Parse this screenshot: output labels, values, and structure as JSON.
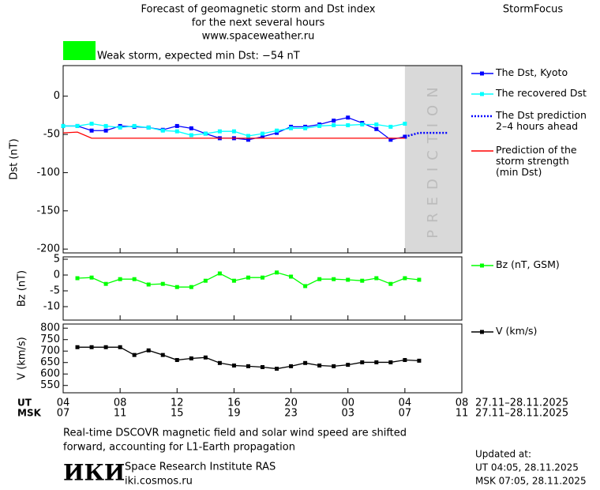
{
  "header": {
    "title_lines": [
      "Forecast of geomagnetic storm and Dst index",
      "for the next several hours",
      "www.spaceweather.ru"
    ],
    "brand": "StormFocus",
    "storm_color": "#00ff00",
    "storm_text": "Weak storm, expected min Dst: −54 nT"
  },
  "chart_data": [
    {
      "type": "line",
      "y_label": "Dst (nT)",
      "ylim": [
        -205,
        40
      ],
      "yticks": [
        0,
        -50,
        -100,
        -150,
        -200
      ],
      "prediction_window": [
        24,
        28
      ],
      "prediction_label": "PREDICTION",
      "prediction_color": "#d9d9d9",
      "series": [
        {
          "name": "The Dst, Kyoto",
          "color": "#0000ff",
          "marker": "square",
          "line_style": "solid",
          "x": [
            0,
            1,
            2,
            3,
            4,
            5,
            6,
            7,
            8,
            9,
            10,
            11,
            12,
            13,
            14,
            15,
            16,
            17,
            18,
            19,
            20,
            21,
            22,
            23,
            24
          ],
          "values": [
            -39,
            -39,
            -45,
            -45,
            -39,
            -40,
            -41,
            -44,
            -39,
            -42,
            -49,
            -55,
            -55,
            -57,
            -53,
            -48,
            -40,
            -40,
            -37,
            -32,
            -28,
            -35,
            -43,
            -57,
            -53
          ]
        },
        {
          "name": "The recovered Dst",
          "color": "#00ffff",
          "marker": "square",
          "line_style": "solid",
          "x": [
            0,
            1,
            2,
            3,
            4,
            5,
            6,
            7,
            8,
            9,
            10,
            11,
            12,
            13,
            14,
            15,
            16,
            17,
            18,
            19,
            20,
            21,
            22,
            23,
            24
          ],
          "values": [
            -39,
            -39,
            -36,
            -39,
            -41,
            -39,
            -41,
            -45,
            -46,
            -51,
            -49,
            -46,
            -46,
            -52,
            -49,
            -45,
            -42,
            -42,
            -39,
            -38,
            -38,
            -37,
            -37,
            -40,
            -36
          ]
        },
        {
          "name": "The Dst prediction\n2–4 hours ahead",
          "color": "#0000ff",
          "marker": "none",
          "line_style": "dotted",
          "x": [
            24,
            25,
            26,
            27
          ],
          "values": [
            -53,
            -48,
            -48,
            -48
          ]
        },
        {
          "name": "Prediction of the\nstorm strength\n(min Dst)",
          "color": "#ff0000",
          "marker": "none",
          "line_style": "solid",
          "x": [
            0,
            1,
            2,
            24
          ],
          "values": [
            -48,
            -47,
            -55,
            -55
          ]
        }
      ]
    },
    {
      "type": "line",
      "y_label": "Bz (nT)",
      "ylim": [
        -14.25,
        5.75
      ],
      "yticks": [
        5,
        0,
        -5,
        -10
      ],
      "series": [
        {
          "name": "Bz (nT, GSM)",
          "color": "#00ff00",
          "marker": "square",
          "line_style": "solid",
          "x": [
            1,
            2,
            3,
            4,
            5,
            6,
            7,
            8,
            9,
            10,
            11,
            12,
            13,
            14,
            15,
            16,
            17,
            18,
            19,
            20,
            21,
            22,
            23,
            24,
            25
          ],
          "values": [
            -1,
            -0.8,
            -2.8,
            -1.3,
            -1.3,
            -3,
            -2.8,
            -3.8,
            -3.8,
            -1.8,
            0.5,
            -1.8,
            -0.8,
            -0.8,
            0.8,
            -0.5,
            -3.5,
            -1.3,
            -1.3,
            -1.5,
            -1.8,
            -1,
            -2.8,
            -1,
            -1.5
          ]
        }
      ]
    },
    {
      "type": "line",
      "y_label": "V (km/s)",
      "ylim": [
        518,
        818
      ],
      "yticks": [
        800,
        750,
        700,
        650,
        600,
        550
      ],
      "xlim": [
        0,
        28
      ],
      "xticks": [
        {
          "value": 0,
          "label": "04"
        },
        {
          "value": 4,
          "label": "08"
        },
        {
          "value": 8,
          "label": "12"
        },
        {
          "value": 12,
          "label": "16"
        },
        {
          "value": 16,
          "label": "20"
        },
        {
          "value": 20,
          "label": "00"
        },
        {
          "value": 24,
          "label": "04"
        },
        {
          "value": 28,
          "label": "08"
        }
      ],
      "x2_labels": [
        "07",
        "11",
        "15",
        "19",
        "23",
        "03",
        "07",
        "11"
      ],
      "x_row_labels": [
        "UT",
        "MSK"
      ],
      "x_date_labels": [
        "27.11–28.11.2025",
        "27.11–28.11.2025"
      ],
      "series": [
        {
          "name": "V (km/s)",
          "color": "#000000",
          "marker": "square",
          "line_style": "solid",
          "x": [
            1,
            2,
            3,
            4,
            5,
            6,
            7,
            8,
            9,
            10,
            11,
            12,
            13,
            14,
            15,
            16,
            17,
            18,
            19,
            20,
            21,
            22,
            23,
            24,
            25
          ],
          "values": [
            717,
            717,
            717,
            717,
            683,
            703,
            683,
            661,
            668,
            672,
            648,
            637,
            634,
            630,
            623,
            634,
            648,
            637,
            634,
            640,
            651,
            651,
            651,
            661,
            658
          ]
        }
      ]
    }
  ],
  "footer": {
    "note_lines": [
      "Real-time DSCOVR magnetic field and solar wind speed are shifted",
      "forward, accounting for L1-Earth propagation"
    ],
    "logo": "ИКИ",
    "institute": "Space Research Institute RAS",
    "url": "iki.cosmos.ru",
    "updated_lines": [
      "Updated at:",
      "UT   04:05, 28.11.2025",
      "MSK 07:05, 28.11.2025"
    ]
  }
}
